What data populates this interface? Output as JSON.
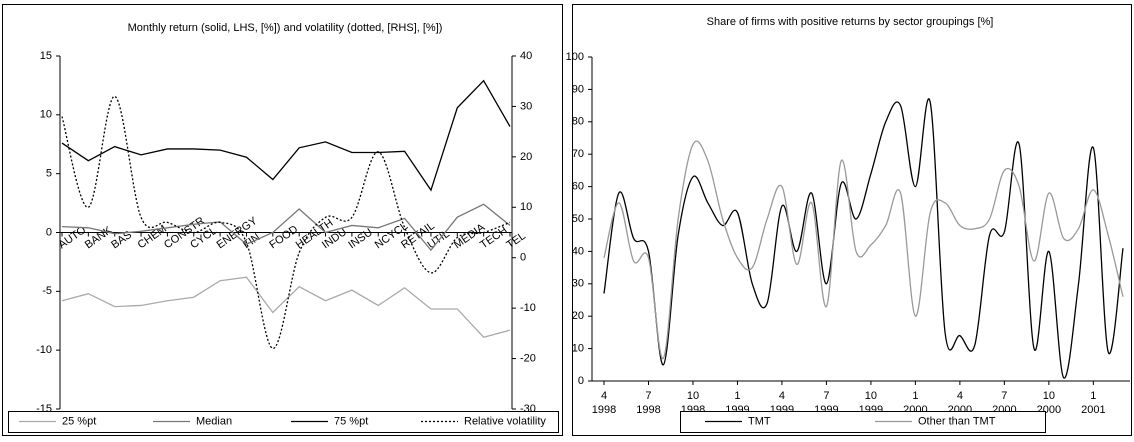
{
  "chart_data": [
    {
      "type": "line",
      "title": "Monthly return (solid, LHS, [%]) and volatility (dotted, [RHS], [%])",
      "categories": [
        "AUTO",
        "BANK",
        "BAS",
        "CHEM",
        "CONSTR",
        "CYCL",
        "ENERGY",
        "FIN",
        "FOOD",
        "HEALTH",
        "INDU",
        "INSU",
        "NCYCL",
        "RETAIL",
        "UTIL",
        "MEDIA",
        "TECH",
        "TEL"
      ],
      "ylim": [
        -15,
        15
      ],
      "yticks": [
        -15,
        -10,
        -5,
        0,
        5,
        10,
        15
      ],
      "y2lim": [
        -30,
        40
      ],
      "y2ticks": [
        -30,
        -20,
        -10,
        0,
        10,
        20,
        30,
        40
      ],
      "series": [
        {
          "name": "25 %pt",
          "color": "#aaaaaa",
          "values": [
            -5.8,
            -5.2,
            -6.3,
            -6.2,
            -5.8,
            -5.5,
            -4.1,
            -3.8,
            -6.8,
            -4.6,
            -5.8,
            -4.9,
            -6.2,
            -4.7,
            -6.5,
            -6.5,
            -8.9,
            -8.3
          ]
        },
        {
          "name": "Median",
          "color": "#777777",
          "values": [
            0.5,
            0.4,
            -0.1,
            0.1,
            0.4,
            0.7,
            0.9,
            -1.0,
            0.0,
            2.0,
            0.0,
            0.6,
            0.4,
            1.2,
            -1.5,
            1.3,
            2.4,
            0.6
          ]
        },
        {
          "name": "75 %pt",
          "color": "#000000",
          "values": [
            7.6,
            6.1,
            7.3,
            6.6,
            7.1,
            7.1,
            7.0,
            6.4,
            4.5,
            7.2,
            7.7,
            6.8,
            6.8,
            6.9,
            3.6,
            10.6,
            12.9,
            9.0
          ]
        },
        {
          "name": "Relative volatility",
          "color": "#000000",
          "dash": "dotted",
          "smooth": true,
          "axis": "y2",
          "values": [
            28,
            10,
            32,
            8,
            7,
            5,
            7,
            3,
            -18,
            1,
            8,
            8,
            21,
            6,
            -3,
            4,
            5,
            7
          ]
        }
      ]
    },
    {
      "type": "line",
      "title": "Share of firms with positive returns by sector groupings [%]",
      "categories": [
        [
          "4",
          "1998"
        ],
        null,
        null,
        [
          "7",
          "1998"
        ],
        null,
        null,
        [
          "10",
          "1998"
        ],
        null,
        null,
        [
          "1",
          "1999"
        ],
        null,
        null,
        [
          "4",
          "1999"
        ],
        null,
        null,
        [
          "7",
          "1999"
        ],
        null,
        null,
        [
          "10",
          "1999"
        ],
        null,
        null,
        [
          "1",
          "2000"
        ],
        null,
        null,
        [
          "4",
          "2000"
        ],
        null,
        null,
        [
          "7",
          "2000"
        ],
        null,
        null,
        [
          "10",
          "2000"
        ],
        null,
        null,
        [
          "1",
          "2001"
        ],
        null,
        null
      ],
      "ylim": [
        0,
        100
      ],
      "yticks": [
        0,
        10,
        20,
        30,
        40,
        50,
        60,
        70,
        80,
        90,
        100
      ],
      "series": [
        {
          "name": "TMT",
          "color": "#000000",
          "smooth": true,
          "values": [
            27,
            58,
            44,
            40,
            5,
            45,
            63,
            55,
            48,
            52,
            30,
            24,
            54,
            40,
            58,
            30,
            61,
            50,
            64,
            80,
            85,
            60,
            86,
            15,
            14,
            11,
            45,
            46,
            73,
            10,
            40,
            1,
            30,
            72,
            9,
            41
          ]
        },
        {
          "name": "Other than TMT",
          "color": "#999999",
          "smooth": true,
          "values": [
            38,
            55,
            37,
            38,
            7,
            50,
            73,
            68,
            50,
            38,
            35,
            50,
            60,
            36,
            55,
            23,
            68,
            40,
            42,
            48,
            58,
            20,
            52,
            55,
            48,
            47,
            50,
            65,
            60,
            37,
            58,
            44,
            47,
            59,
            45,
            26
          ]
        }
      ]
    }
  ]
}
